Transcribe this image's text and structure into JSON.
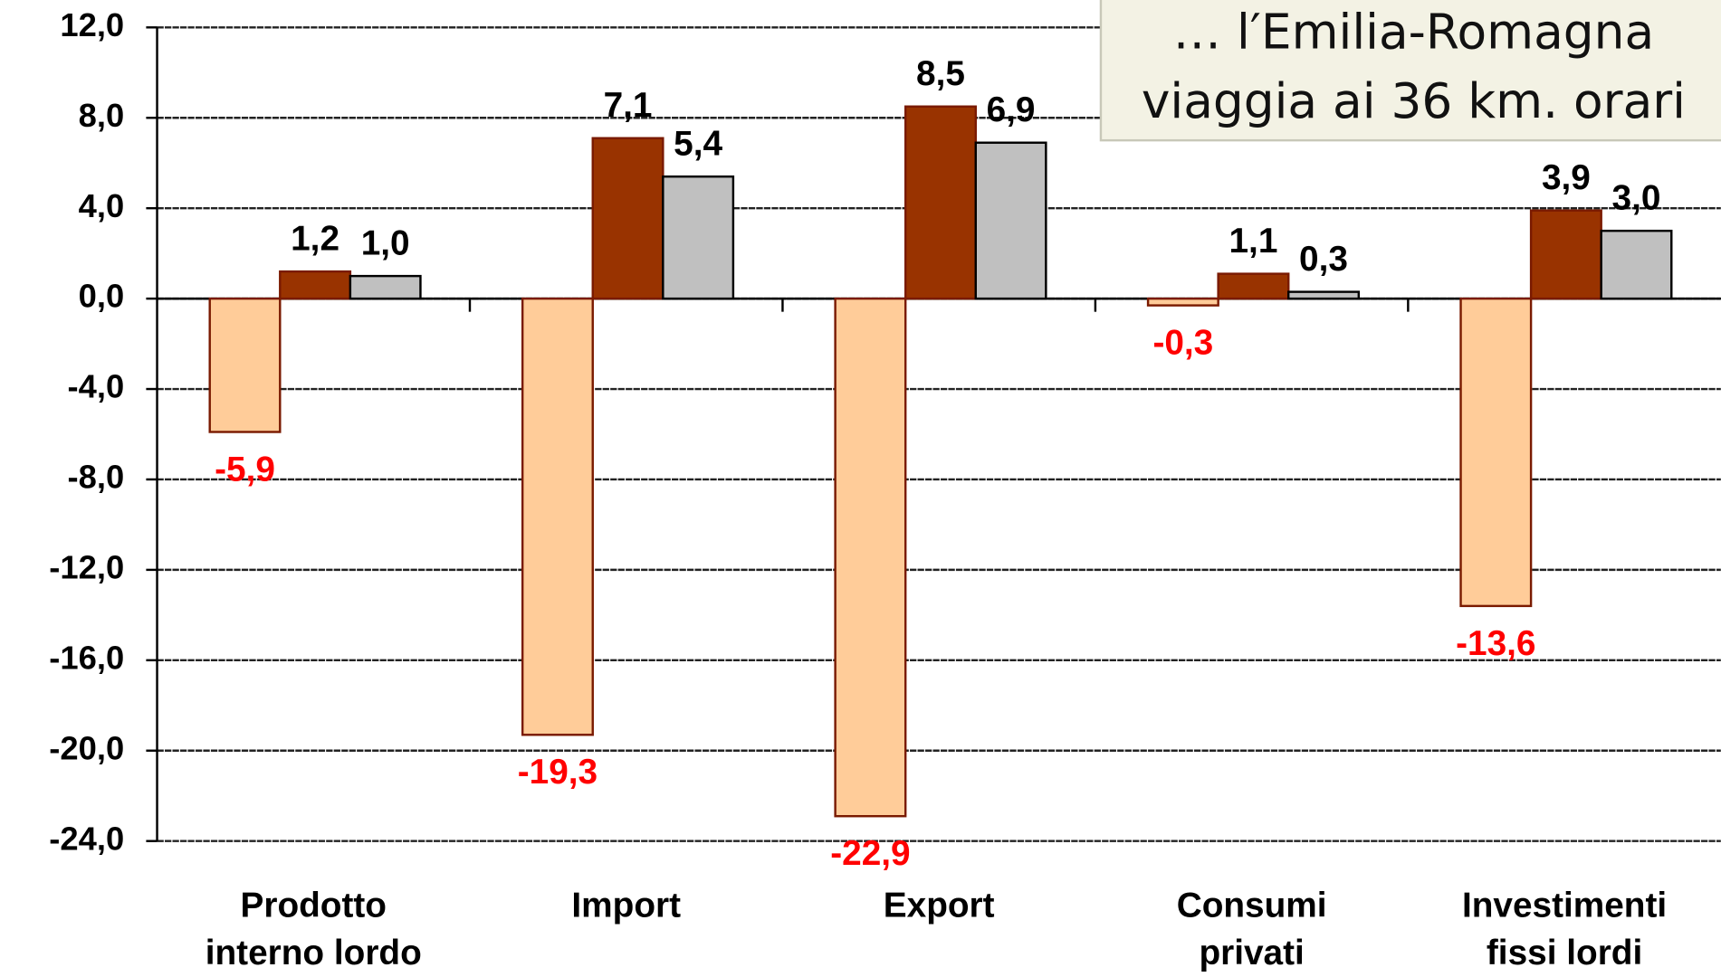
{
  "chart_data": {
    "type": "bar",
    "categories": [
      "Prodotto\ninterno lordo",
      "Import",
      "Export",
      "Consumi\nprivati",
      "Investimenti\nfissi lordi"
    ],
    "series": [
      {
        "color": "#ffcc99",
        "values": [
          -5.9,
          -19.3,
          -22.9,
          -0.3,
          -13.6
        ],
        "value_labels": [
          "-5,9",
          "-19,3",
          "-22,9",
          "-0,3",
          "-13,6"
        ]
      },
      {
        "color": "#993300",
        "values": [
          1.2,
          7.1,
          8.5,
          1.1,
          3.9
        ],
        "value_labels": [
          "1,2",
          "7,1",
          "8,5",
          "1,1",
          "3,9"
        ]
      },
      {
        "color": "#c0c0c0",
        "values": [
          1.0,
          5.4,
          6.9,
          0.3,
          3.0
        ],
        "value_labels": [
          "1,0",
          "5,4",
          "6,9",
          "0,3",
          "3,0"
        ]
      }
    ],
    "ylim": [
      -24,
      12
    ],
    "yticks": [
      {
        "value": 12,
        "label": "12,0"
      },
      {
        "value": 8,
        "label": "8,0"
      },
      {
        "value": 4,
        "label": "4,0"
      },
      {
        "value": 0,
        "label": "0,0"
      },
      {
        "value": -4,
        "label": "-4,0"
      },
      {
        "value": -8,
        "label": "-8,0"
      },
      {
        "value": -12,
        "label": "-12,0"
      },
      {
        "value": -16,
        "label": "-16,0"
      },
      {
        "value": -20,
        "label": "-20,0"
      },
      {
        "value": -24,
        "label": "-24,0"
      }
    ],
    "grid": true,
    "annotation": [
      "… l′Emilia-Romagna",
      "viaggia ai 36 km. orari"
    ]
  }
}
